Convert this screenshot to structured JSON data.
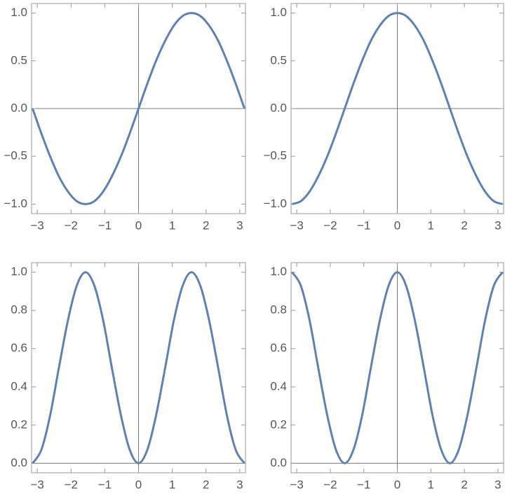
{
  "chart_data": [
    {
      "type": "line",
      "x": [
        -3.14,
        -2.88,
        -2.62,
        -2.36,
        -2.09,
        -1.83,
        -1.57,
        -1.31,
        -1.05,
        -0.79,
        -0.52,
        -0.26,
        0,
        0.26,
        0.52,
        0.79,
        1.05,
        1.31,
        1.57,
        1.83,
        2.09,
        2.36,
        2.62,
        2.88,
        3.14
      ],
      "series": [
        {
          "color": "#5e81b5",
          "values": [
            0,
            -0.26,
            -0.5,
            -0.71,
            -0.87,
            -0.97,
            -1,
            -0.97,
            -0.87,
            -0.71,
            -0.5,
            -0.26,
            0,
            0.26,
            0.5,
            0.71,
            0.87,
            0.97,
            1,
            0.97,
            0.87,
            0.71,
            0.5,
            0.26,
            0
          ]
        }
      ],
      "xlim": [
        -3.17,
        3.17
      ],
      "ylim": [
        -1.1,
        1.1
      ],
      "xticks": [
        {
          "value": -3,
          "label": "−3"
        },
        {
          "value": -2,
          "label": "−2"
        },
        {
          "value": -1,
          "label": "−1"
        },
        0,
        1,
        2,
        3
      ],
      "yticks": [
        {
          "value": -1,
          "label": "−1.0"
        },
        {
          "value": -0.5,
          "label": "−0.5"
        },
        {
          "value": 0,
          "label": "0.0"
        },
        0.5,
        {
          "value": 1,
          "label": "1.0"
        }
      ]
    },
    {
      "type": "line",
      "x": [
        -3.14,
        -2.88,
        -2.62,
        -2.36,
        -2.09,
        -1.83,
        -1.57,
        -1.31,
        -1.05,
        -0.79,
        -0.52,
        -0.26,
        0,
        0.26,
        0.52,
        0.79,
        1.05,
        1.31,
        1.57,
        1.83,
        2.09,
        2.36,
        2.62,
        2.88,
        3.14
      ],
      "series": [
        {
          "color": "#5e81b5",
          "values": [
            -1,
            -0.97,
            -0.87,
            -0.71,
            -0.5,
            -0.26,
            0,
            0.26,
            0.5,
            0.71,
            0.87,
            0.97,
            1,
            0.97,
            0.87,
            0.71,
            0.5,
            0.26,
            0,
            -0.26,
            -0.5,
            -0.71,
            -0.87,
            -0.97,
            -1
          ]
        }
      ],
      "xlim": [
        -3.17,
        3.17
      ],
      "ylim": [
        -1.1,
        1.1
      ],
      "xticks": [
        {
          "value": -3,
          "label": "−3"
        },
        {
          "value": -2,
          "label": "−2"
        },
        {
          "value": -1,
          "label": "−1"
        },
        0,
        1,
        2,
        3
      ],
      "yticks": [
        {
          "value": -1,
          "label": "−1.0"
        },
        {
          "value": -0.5,
          "label": "−0.5"
        },
        {
          "value": 0,
          "label": "0.0"
        },
        0.5,
        {
          "value": 1,
          "label": "1.0"
        }
      ]
    },
    {
      "type": "line",
      "x": [
        -3.14,
        -2.88,
        -2.62,
        -2.36,
        -2.09,
        -1.83,
        -1.57,
        -1.31,
        -1.05,
        -0.79,
        -0.52,
        -0.26,
        0,
        0.26,
        0.52,
        0.79,
        1.05,
        1.31,
        1.57,
        1.83,
        2.09,
        2.36,
        2.62,
        2.88,
        3.14
      ],
      "series": [
        {
          "color": "#5e81b5",
          "values": [
            0,
            0.07,
            0.25,
            0.5,
            0.75,
            0.93,
            1,
            0.93,
            0.75,
            0.5,
            0.25,
            0.07,
            0,
            0.07,
            0.25,
            0.5,
            0.75,
            0.93,
            1,
            0.93,
            0.75,
            0.5,
            0.25,
            0.07,
            0
          ]
        }
      ],
      "xlim": [
        -3.17,
        3.17
      ],
      "ylim": [
        -0.05,
        1.05
      ],
      "xticks": [
        {
          "value": -3,
          "label": "−3"
        },
        {
          "value": -2,
          "label": "−2"
        },
        {
          "value": -1,
          "label": "−1"
        },
        0,
        1,
        2,
        3
      ],
      "yticks": [
        {
          "value": 0,
          "label": "0.0"
        },
        0.2,
        0.4,
        0.6,
        0.8,
        {
          "value": 1,
          "label": "1.0"
        }
      ]
    },
    {
      "type": "line",
      "x": [
        -3.14,
        -2.88,
        -2.62,
        -2.36,
        -2.09,
        -1.83,
        -1.57,
        -1.31,
        -1.05,
        -0.79,
        -0.52,
        -0.26,
        0,
        0.26,
        0.52,
        0.79,
        1.05,
        1.31,
        1.57,
        1.83,
        2.09,
        2.36,
        2.62,
        2.88,
        3.14
      ],
      "series": [
        {
          "color": "#5e81b5",
          "values": [
            1,
            0.93,
            0.75,
            0.5,
            0.25,
            0.07,
            0,
            0.07,
            0.25,
            0.5,
            0.75,
            0.93,
            1,
            0.93,
            0.75,
            0.5,
            0.25,
            0.07,
            0,
            0.07,
            0.25,
            0.5,
            0.75,
            0.93,
            1
          ]
        }
      ],
      "xlim": [
        -3.17,
        3.17
      ],
      "ylim": [
        -0.05,
        1.05
      ],
      "xticks": [
        {
          "value": -3,
          "label": "−3"
        },
        {
          "value": -2,
          "label": "−2"
        },
        {
          "value": -1,
          "label": "−1"
        },
        0,
        1,
        2,
        3
      ],
      "yticks": [
        {
          "value": 0,
          "label": "0.0"
        },
        0.2,
        0.4,
        0.6,
        0.8,
        {
          "value": 1,
          "label": "1.0"
        }
      ]
    }
  ]
}
